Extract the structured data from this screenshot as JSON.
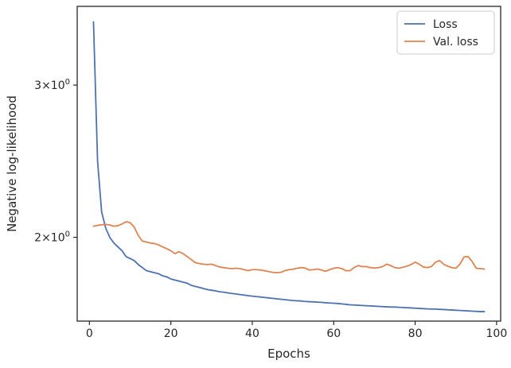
{
  "chart_data": {
    "type": "line",
    "xlabel": "Epochs",
    "ylabel": "Negative log-likelihood",
    "yscale": "log",
    "xlim": [
      -3,
      101
    ],
    "ylim": [
      1.6,
      3.7
    ],
    "x_ticks": [
      0,
      20,
      40,
      60,
      80,
      100
    ],
    "x_tick_labels": [
      "0",
      "20",
      "40",
      "60",
      "80",
      "100"
    ],
    "y_ticks": [
      {
        "value": 3,
        "mantissa": "3",
        "exp": "0"
      },
      {
        "value": 2,
        "mantissa": "2",
        "exp": "0"
      }
    ],
    "grid": false,
    "legend": {
      "position": "top-right"
    },
    "x": [
      1,
      2,
      3,
      4,
      5,
      6,
      7,
      8,
      9,
      10,
      11,
      12,
      13,
      14,
      15,
      16,
      17,
      18,
      19,
      20,
      21,
      22,
      23,
      24,
      25,
      26,
      27,
      28,
      29,
      30,
      31,
      32,
      33,
      34,
      35,
      36,
      37,
      38,
      39,
      40,
      41,
      42,
      43,
      44,
      45,
      46,
      47,
      48,
      49,
      50,
      51,
      52,
      53,
      54,
      55,
      56,
      57,
      58,
      59,
      60,
      61,
      62,
      63,
      64,
      65,
      66,
      67,
      68,
      69,
      70,
      71,
      72,
      73,
      74,
      75,
      76,
      77,
      78,
      79,
      80,
      81,
      82,
      83,
      84,
      85,
      86,
      87,
      88,
      89,
      90,
      91,
      92,
      93,
      94,
      95,
      96,
      97
    ],
    "series": [
      {
        "name": "Loss",
        "color": "#4c72b0",
        "values": [
          3.55,
          2.45,
          2.14,
          2.05,
          2.0,
          1.97,
          1.95,
          1.93,
          1.9,
          1.89,
          1.88,
          1.86,
          1.845,
          1.83,
          1.825,
          1.82,
          1.815,
          1.805,
          1.8,
          1.79,
          1.785,
          1.78,
          1.775,
          1.77,
          1.76,
          1.755,
          1.75,
          1.745,
          1.74,
          1.737,
          1.734,
          1.73,
          1.728,
          1.725,
          1.722,
          1.72,
          1.717,
          1.715,
          1.712,
          1.71,
          1.708,
          1.706,
          1.704,
          1.702,
          1.7,
          1.698,
          1.696,
          1.694,
          1.692,
          1.69,
          1.689,
          1.688,
          1.686,
          1.685,
          1.684,
          1.683,
          1.682,
          1.68,
          1.679,
          1.678,
          1.677,
          1.675,
          1.673,
          1.671,
          1.67,
          1.669,
          1.668,
          1.667,
          1.666,
          1.665,
          1.664,
          1.663,
          1.662,
          1.661,
          1.661,
          1.66,
          1.659,
          1.658,
          1.657,
          1.656,
          1.655,
          1.654,
          1.653,
          1.652,
          1.652,
          1.651,
          1.65,
          1.649,
          1.648,
          1.647,
          1.646,
          1.645,
          1.644,
          1.643,
          1.642,
          1.641,
          1.641
        ]
      },
      {
        "name": "Val. loss",
        "color": "#dd8452",
        "values": [
          2.06,
          2.065,
          2.068,
          2.07,
          2.067,
          2.06,
          2.063,
          2.072,
          2.085,
          2.08,
          2.055,
          2.01,
          1.98,
          1.975,
          1.97,
          1.967,
          1.96,
          1.95,
          1.94,
          1.93,
          1.915,
          1.925,
          1.915,
          1.9,
          1.885,
          1.87,
          1.865,
          1.862,
          1.86,
          1.862,
          1.855,
          1.848,
          1.845,
          1.842,
          1.84,
          1.842,
          1.84,
          1.835,
          1.83,
          1.835,
          1.835,
          1.833,
          1.83,
          1.826,
          1.822,
          1.82,
          1.822,
          1.83,
          1.835,
          1.837,
          1.842,
          1.845,
          1.843,
          1.833,
          1.835,
          1.838,
          1.833,
          1.827,
          1.835,
          1.842,
          1.845,
          1.84,
          1.83,
          1.83,
          1.845,
          1.855,
          1.85,
          1.85,
          1.845,
          1.843,
          1.845,
          1.85,
          1.862,
          1.855,
          1.845,
          1.842,
          1.847,
          1.852,
          1.86,
          1.872,
          1.862,
          1.848,
          1.845,
          1.85,
          1.872,
          1.88,
          1.862,
          1.852,
          1.845,
          1.842,
          1.862,
          1.898,
          1.9,
          1.875,
          1.842,
          1.84,
          1.838
        ]
      }
    ]
  }
}
